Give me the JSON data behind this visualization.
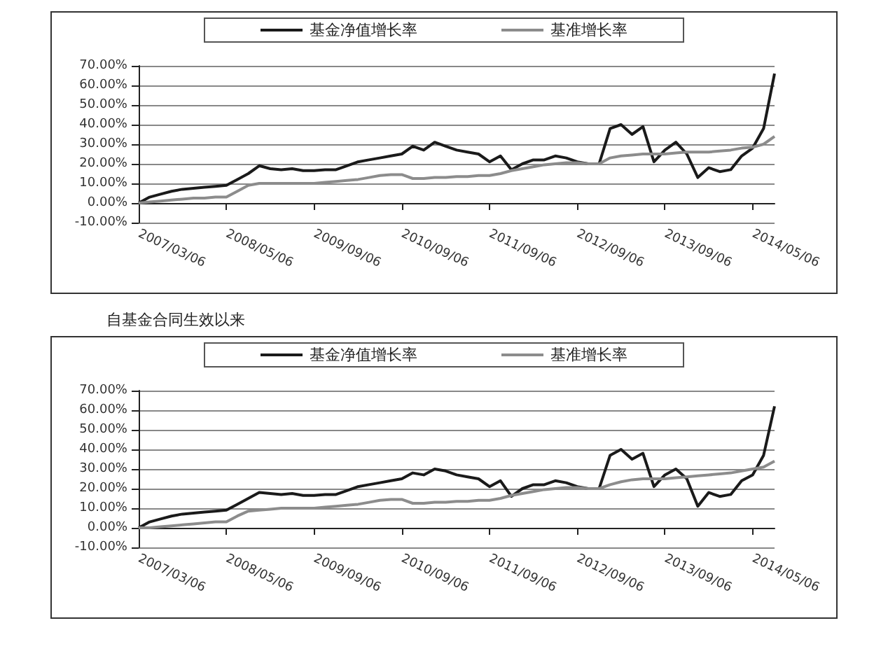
{
  "chart_data": [
    {
      "type": "line",
      "categories": [
        "2007/03/06",
        null,
        null,
        null,
        null,
        null,
        null,
        null,
        "2008/05/06",
        null,
        null,
        null,
        null,
        null,
        null,
        null,
        "2009/09/06",
        null,
        null,
        null,
        null,
        null,
        null,
        null,
        "2010/09/06",
        null,
        null,
        null,
        null,
        null,
        null,
        null,
        "2011/09/06",
        null,
        null,
        null,
        null,
        null,
        null,
        null,
        "2012/09/06",
        null,
        null,
        null,
        null,
        null,
        null,
        null,
        "2013/09/06",
        null,
        null,
        null,
        null,
        null,
        null,
        null,
        "2014/05/06",
        null,
        null
      ],
      "series": [
        {
          "name": "基金净值增长率",
          "color": "#1a1a1a",
          "values": [
            0,
            3,
            4.5,
            6,
            7,
            7.5,
            8,
            8.5,
            9,
            12,
            15,
            19,
            17.5,
            17,
            17.5,
            16.5,
            16.5,
            17,
            17,
            19,
            21,
            22,
            23,
            24,
            25,
            29,
            27,
            31,
            29,
            27,
            26,
            25,
            21,
            24,
            17,
            20,
            22,
            22,
            24,
            23,
            21,
            20,
            20,
            38,
            40,
            35,
            39,
            21,
            27,
            31,
            25,
            13,
            18,
            16,
            17,
            24,
            28,
            38,
            66
          ]
        },
        {
          "name": "基准增长率",
          "color": "#8c8c8c",
          "values": [
            0,
            0.5,
            1,
            1.5,
            2,
            2.5,
            2.5,
            3,
            3,
            6,
            9,
            10,
            10,
            10,
            10,
            10,
            10,
            10.5,
            11,
            11.5,
            12,
            13,
            14,
            14.5,
            14.5,
            12.5,
            12.5,
            13,
            13,
            13.5,
            13.5,
            14,
            14,
            15,
            16.5,
            17.5,
            18.5,
            19.5,
            20,
            20.5,
            20.5,
            20,
            20,
            23,
            24,
            24.5,
            25,
            25,
            25,
            25.5,
            26,
            26,
            26,
            26.5,
            27,
            28,
            28.5,
            30,
            34
          ]
        }
      ],
      "ylim": [
        -10,
        70
      ],
      "yticks": [
        {
          "value": -10,
          "label": "-10.00%"
        },
        {
          "value": 0,
          "label": "0.00%"
        },
        {
          "value": 10,
          "label": "10.00%"
        },
        {
          "value": 20,
          "label": "20.00%"
        },
        {
          "value": 30,
          "label": "30.00%"
        },
        {
          "value": 40,
          "label": "40.00%"
        },
        {
          "value": 50,
          "label": "50.00%"
        },
        {
          "value": 60,
          "label": "60.00%"
        },
        {
          "value": 70,
          "label": "70.00%"
        }
      ],
      "grid": "y",
      "legend": "top"
    },
    {
      "type": "line",
      "title": "自基金合同生效以来",
      "categories": [
        "2007/03/06",
        null,
        null,
        null,
        null,
        null,
        null,
        null,
        "2008/05/06",
        null,
        null,
        null,
        null,
        null,
        null,
        null,
        "2009/09/06",
        null,
        null,
        null,
        null,
        null,
        null,
        null,
        "2010/09/06",
        null,
        null,
        null,
        null,
        null,
        null,
        null,
        "2011/09/06",
        null,
        null,
        null,
        null,
        null,
        null,
        null,
        "2012/09/06",
        null,
        null,
        null,
        null,
        null,
        null,
        null,
        "2013/09/06",
        null,
        null,
        null,
        null,
        null,
        null,
        null,
        "2014/05/06",
        null,
        null
      ],
      "series": [
        {
          "name": "基金净值增长率",
          "color": "#1a1a1a",
          "values": [
            0,
            3,
            4.5,
            6,
            7,
            7.5,
            8,
            8.5,
            9,
            12,
            15,
            18,
            17.5,
            17,
            17.5,
            16.5,
            16.5,
            17,
            17,
            19,
            21,
            22,
            23,
            24,
            25,
            28,
            27,
            30,
            29,
            27,
            26,
            25,
            21,
            24,
            16,
            20,
            22,
            22,
            24,
            23,
            21,
            20,
            20,
            37,
            40,
            35,
            38,
            21,
            27,
            30,
            25,
            11,
            18,
            16,
            17,
            24,
            27,
            37,
            62
          ]
        },
        {
          "name": "基准增长率",
          "color": "#8c8c8c",
          "values": [
            0,
            0,
            0.5,
            1,
            1.5,
            2,
            2.5,
            3,
            3,
            6,
            8.5,
            9,
            9.5,
            10,
            10,
            10,
            10,
            10.5,
            11,
            11.5,
            12,
            13,
            14,
            14.5,
            14.5,
            12.5,
            12.5,
            13,
            13,
            13.5,
            13.5,
            14,
            14,
            15,
            16.5,
            17.5,
            18.5,
            19.5,
            20,
            20.5,
            20.5,
            20,
            20,
            22,
            23.5,
            24.5,
            25,
            25,
            25,
            25.5,
            26,
            26.5,
            27,
            27.5,
            28,
            29,
            30,
            31,
            34
          ]
        }
      ],
      "ylim": [
        -10,
        70
      ],
      "yticks": [
        {
          "value": -10,
          "label": "-10.00%"
        },
        {
          "value": 0,
          "label": "0.00%"
        },
        {
          "value": 10,
          "label": "10.00%"
        },
        {
          "value": 20,
          "label": "20.00%"
        },
        {
          "value": 30,
          "label": "30.00%"
        },
        {
          "value": 40,
          "label": "40.00%"
        },
        {
          "value": 50,
          "label": "50.00%"
        },
        {
          "value": 60,
          "label": "60.00%"
        },
        {
          "value": 70,
          "label": "70.00%"
        }
      ],
      "grid": "y",
      "legend": "top"
    }
  ]
}
